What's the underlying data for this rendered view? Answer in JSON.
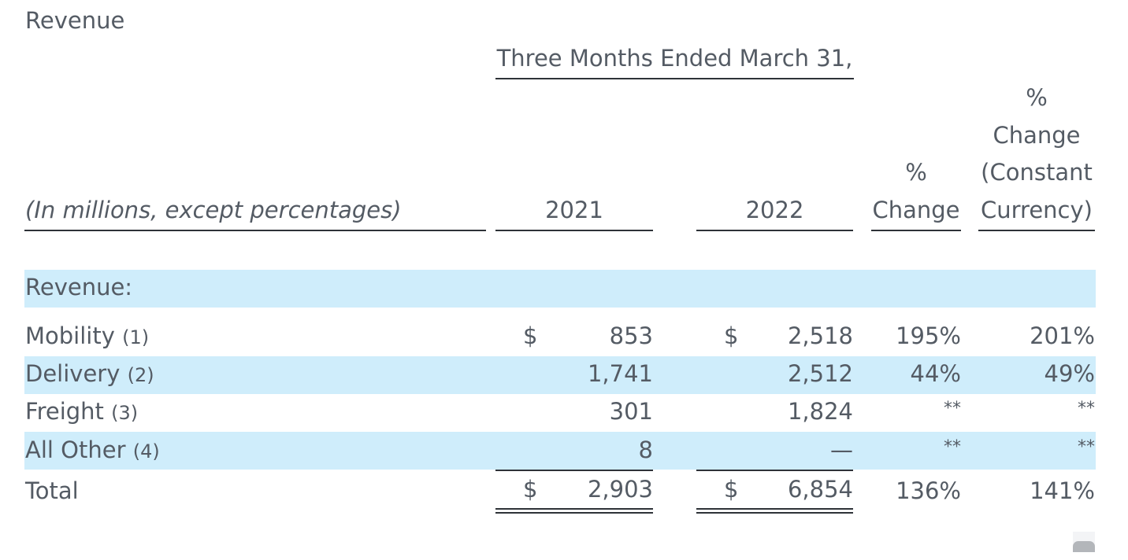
{
  "section_title": "Revenue",
  "period_header": "Three Months Ended March 31,",
  "column_headers": {
    "units": "(In millions, except percentages)",
    "year_2021": "2021",
    "year_2022": "2022",
    "pct_change_l1": "%",
    "pct_change_l2": "Change",
    "cc_change_l1": "%",
    "cc_change_l2": "Change",
    "cc_change_l3": "(Constant",
    "cc_change_l4": "Currency)"
  },
  "group_label": "Revenue:",
  "currency_symbol": "$",
  "rows": [
    {
      "label": "Mobility",
      "footnote": "(1)",
      "y2021": "853",
      "y2022": "2,518",
      "pct": "195%",
      "cc": "201%"
    },
    {
      "label": "Delivery",
      "footnote": "(2)",
      "y2021": "1,741",
      "y2022": "2,512",
      "pct": "44%",
      "cc": "49%"
    },
    {
      "label": "Freight",
      "footnote": "(3)",
      "y2021": "301",
      "y2022": "1,824",
      "pct": "**",
      "cc": "**"
    },
    {
      "label": "All Other",
      "footnote": "(4)",
      "y2021": "8",
      "y2022": "—",
      "pct": "**",
      "cc": "**"
    }
  ],
  "total": {
    "label": "Total",
    "y2021": "2,903",
    "y2022": "6,854",
    "pct": "136%",
    "cc": "141%"
  },
  "colors": {
    "band": "#cfedfb",
    "text": "#545b64",
    "rule": "#2e3238"
  }
}
